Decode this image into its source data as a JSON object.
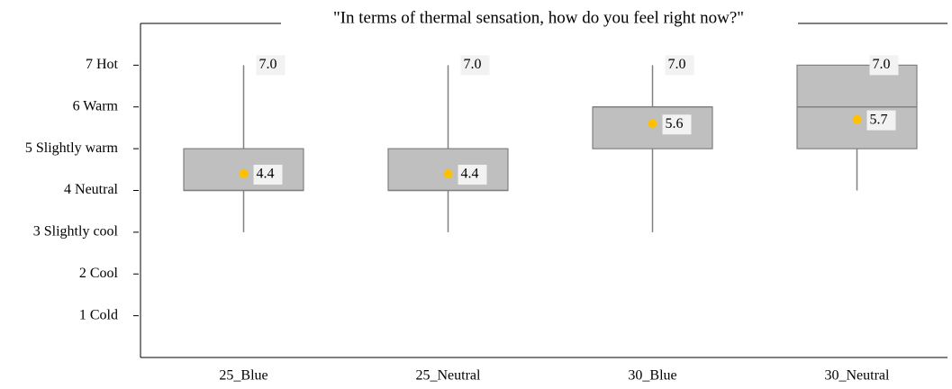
{
  "chart_data": {
    "type": "box",
    "title": "\"In terms of thermal sensation, how do you feel right now?\"",
    "categories": [
      "25_Blue",
      "25_Neutral",
      "30_Blue",
      "30_Neutral"
    ],
    "min": [
      3,
      3,
      3,
      4
    ],
    "q1": [
      4,
      4,
      5,
      5
    ],
    "median": [
      4,
      4,
      6,
      6
    ],
    "q3": [
      5,
      5,
      6,
      7
    ],
    "max": [
      7,
      7,
      7,
      7
    ],
    "max_labels": [
      "7.0",
      "7.0",
      "7.0",
      "7.0"
    ],
    "mean": [
      4.4,
      4.4,
      5.6,
      5.7
    ],
    "box_color": "#bfbfbf",
    "mean_color": "#ffc000",
    "ylim": [
      0,
      8
    ],
    "yticks": [
      {
        "value": 1,
        "label": "1 Cold"
      },
      {
        "value": 2,
        "label": "2 Cool"
      },
      {
        "value": 3,
        "label": "3 Slightly cool"
      },
      {
        "value": 4,
        "label": "4 Neutral"
      },
      {
        "value": 5,
        "label": "5 Slightly warm"
      },
      {
        "value": 6,
        "label": "6 Warm"
      },
      {
        "value": 7,
        "label": "7 Hot"
      }
    ],
    "grid": false
  }
}
